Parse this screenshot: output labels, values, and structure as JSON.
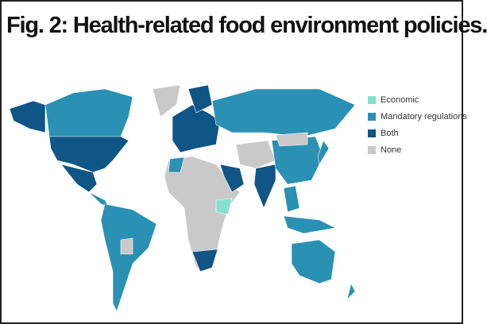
{
  "title": "Fig. 2: Health-related food environment policies.",
  "legend": [
    {
      "name": "Economic",
      "color": "#86e0cd"
    },
    {
      "name": "Mandatory regulations",
      "color": "#2a90b4"
    },
    {
      "name": "Both",
      "color": "#0f5585"
    },
    {
      "name": "None",
      "color": "#c9c9c9"
    }
  ]
}
